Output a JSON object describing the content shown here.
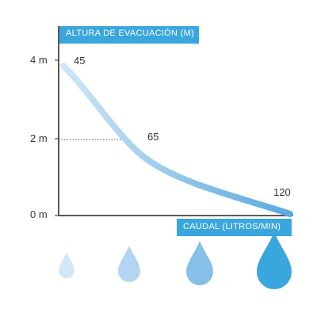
{
  "chart_data": {
    "type": "line",
    "ylabel": "ALTURA DE EVACUACIÓN (M)",
    "xlabel": "CAUDAL (LITROS/MIN)",
    "yticks": [
      "4 m",
      "2 m",
      "0 m"
    ],
    "ylim": [
      0,
      4
    ],
    "xlim": [
      0,
      120
    ],
    "points": [
      {
        "x": 45,
        "y": 4,
        "label": "45"
      },
      {
        "x": 65,
        "y": 2,
        "label": "65"
      },
      {
        "x": 120,
        "y": 0,
        "label": "120"
      }
    ],
    "grid": false,
    "legend": "none",
    "colors": {
      "accent": "#3aa6de",
      "line_start": "#cfe6f6",
      "line_end": "#5aa9df",
      "drops": [
        "#d3e8f7",
        "#b2d6f1",
        "#86c0e9",
        "#3aa6de"
      ]
    }
  }
}
